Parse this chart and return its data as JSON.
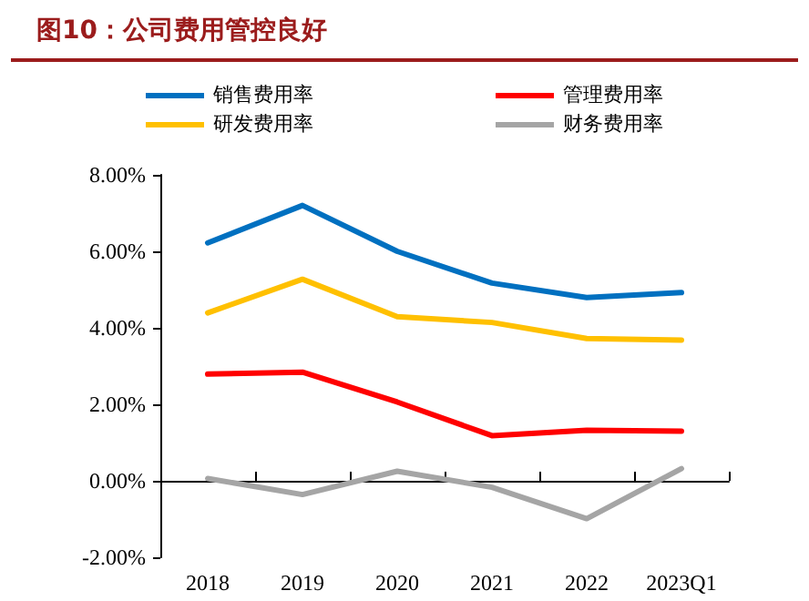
{
  "chart_data": {
    "type": "line",
    "title": "图10：公司费用管控良好",
    "categories": [
      "2018",
      "2019",
      "2020",
      "2021",
      "2022",
      "2023Q1"
    ],
    "series": [
      {
        "name": "销售费用率",
        "color": "#0070c0",
        "values": [
          6.22,
          7.2,
          6.0,
          5.17,
          4.79,
          4.92
        ]
      },
      {
        "name": "管理费用率",
        "color": "#ff0000",
        "values": [
          2.79,
          2.84,
          2.06,
          1.18,
          1.32,
          1.3
        ]
      },
      {
        "name": "研发费用率",
        "color": "#ffc000",
        "values": [
          4.39,
          5.27,
          4.29,
          4.14,
          3.72,
          3.68
        ]
      },
      {
        "name": "财务费用率",
        "color": "#a5a5a5",
        "values": [
          0.06,
          -0.36,
          0.25,
          -0.17,
          -0.99,
          0.32
        ]
      }
    ],
    "ylim": [
      -2,
      8
    ],
    "yticks": [
      {
        "value": -2,
        "label": "-2.00%"
      },
      {
        "value": 0,
        "label": "0.00%"
      },
      {
        "value": 2,
        "label": "2.00%"
      },
      {
        "value": 4,
        "label": "4.00%"
      },
      {
        "value": 6,
        "label": "6.00%"
      },
      {
        "value": 8,
        "label": "8.00%"
      }
    ],
    "legend": "top",
    "marker": "none",
    "line_style": "solid"
  }
}
